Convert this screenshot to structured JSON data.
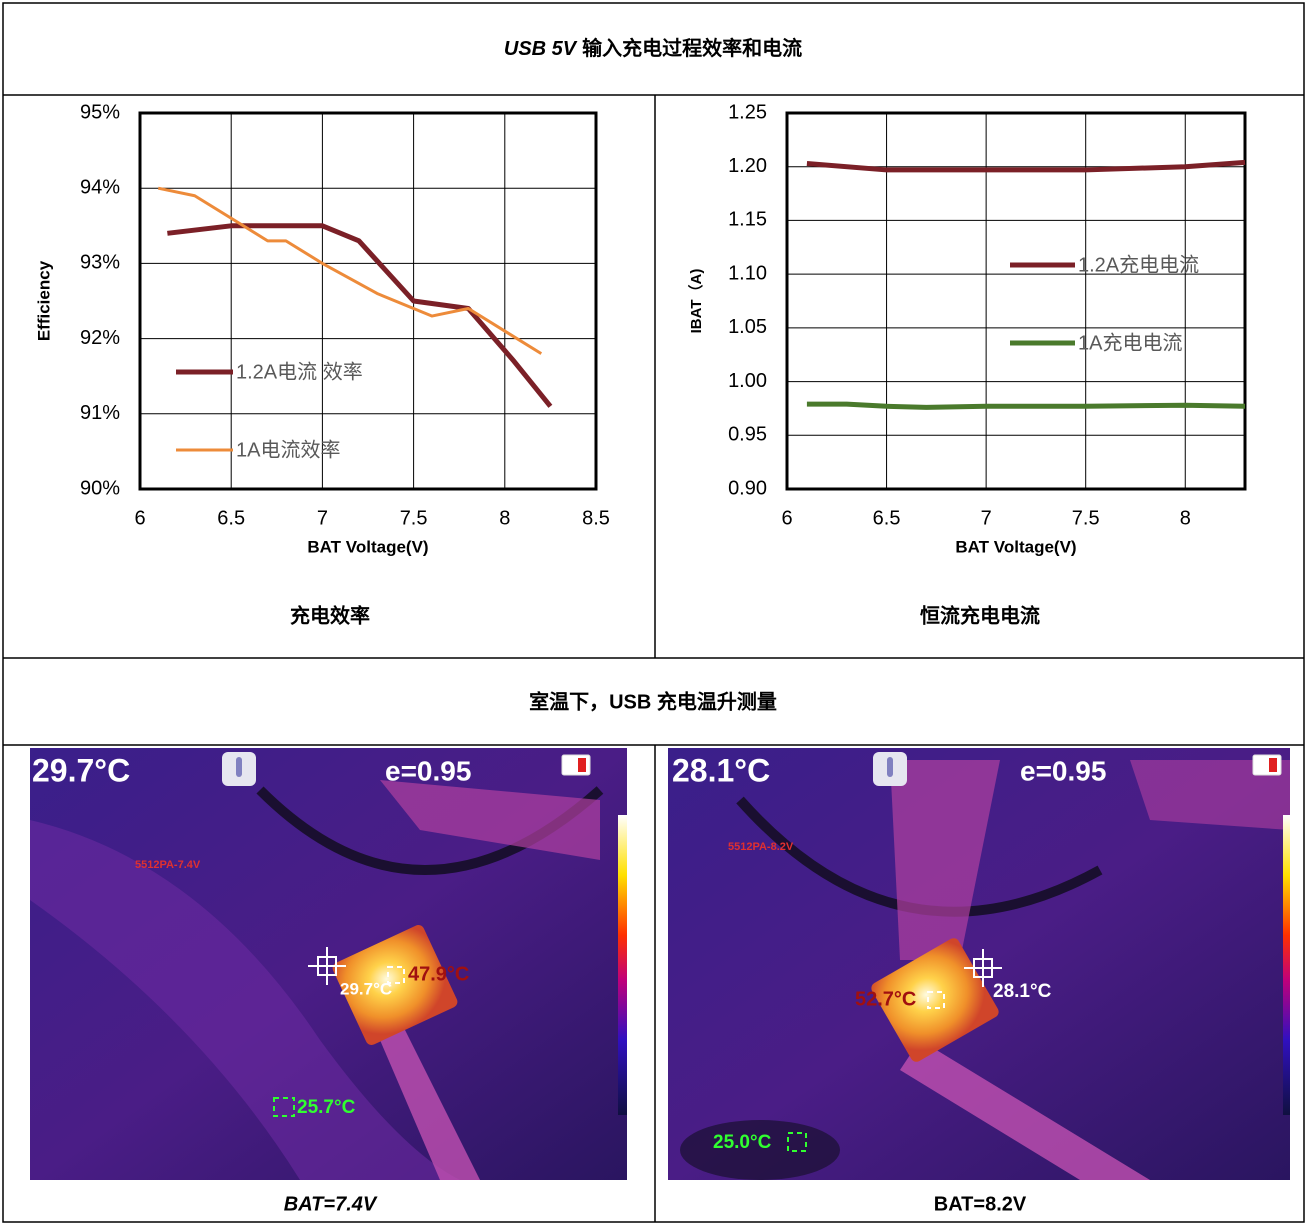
{
  "header": {
    "title_emphasis": "USB 5V",
    "title": "输入充电过程效率和电流"
  },
  "chart_data": [
    {
      "type": "line",
      "x_label": "BAT Voltage(V)",
      "y_label": "Efficiency",
      "caption": "充电效率",
      "xlim": [
        6,
        8.5
      ],
      "xticks": [
        6,
        6.5,
        7,
        7.5,
        8,
        8.5
      ],
      "ylim": [
        90,
        95
      ],
      "yticks": [
        {
          "value": 90,
          "label": "90%"
        },
        {
          "value": 91,
          "label": "91%"
        },
        {
          "value": 92,
          "label": "92%"
        },
        {
          "value": 93,
          "label": "93%"
        },
        {
          "value": 94,
          "label": "94%"
        },
        {
          "value": 95,
          "label": "95%"
        }
      ],
      "grid": true,
      "legend": "left",
      "series": [
        {
          "name": "1.2A电流 效率",
          "color": "#7b2027",
          "width": 5,
          "x": [
            6.15,
            6.5,
            7.0,
            7.2,
            7.5,
            7.8,
            8.05,
            8.25
          ],
          "values": [
            93.4,
            93.5,
            93.5,
            93.3,
            92.5,
            92.4,
            91.7,
            91.1
          ]
        },
        {
          "name": "1A电流效率",
          "color": "#ed8b3a",
          "width": 3,
          "x": [
            6.1,
            6.3,
            6.5,
            6.7,
            6.8,
            7.0,
            7.3,
            7.6,
            7.8,
            8.2
          ],
          "values": [
            94.0,
            93.9,
            93.6,
            93.3,
            93.3,
            93.0,
            92.6,
            92.3,
            92.4,
            91.8
          ]
        }
      ]
    },
    {
      "type": "line",
      "x_label": "BAT Voltage(V)",
      "y_label": "IBAT（A)",
      "caption": "恒流充电电流",
      "xlim": [
        6,
        8.3
      ],
      "xticks": [
        6,
        6.5,
        7,
        7.5,
        8
      ],
      "ylim": [
        0.9,
        1.25
      ],
      "yticks": [
        {
          "value": 0.9,
          "label": "0.90"
        },
        {
          "value": 0.95,
          "label": "0.95"
        },
        {
          "value": 1.0,
          "label": "1.00"
        },
        {
          "value": 1.05,
          "label": "1.05"
        },
        {
          "value": 1.1,
          "label": "1.10"
        },
        {
          "value": 1.15,
          "label": "1.15"
        },
        {
          "value": 1.2,
          "label": "1.20"
        },
        1.25
      ],
      "grid": true,
      "legend": "right",
      "series": [
        {
          "name": "1.2A充电电流",
          "color": "#7b2027",
          "width": 5,
          "x": [
            6.1,
            6.5,
            7.0,
            7.5,
            8.0,
            8.3
          ],
          "values": [
            1.203,
            1.197,
            1.197,
            1.197,
            1.2,
            1.204
          ]
        },
        {
          "name": "1A充电电流",
          "color": "#4a7a2c",
          "width": 5,
          "x": [
            6.1,
            6.3,
            6.5,
            6.7,
            7.0,
            7.5,
            8.0,
            8.3
          ],
          "values": [
            0.979,
            0.979,
            0.977,
            0.976,
            0.977,
            0.977,
            0.978,
            0.977
          ]
        }
      ]
    }
  ],
  "section_title": "室温下，USB 充电温升测量",
  "thermal_images": [
    {
      "reading": "29.7°C",
      "emissivity": "e=0.95",
      "label": "5512PA-7.4V",
      "hot_spot": "47.9°C",
      "center_spot": "29.7°C",
      "cold_spot": "25.7°C",
      "caption": "BAT=7.4V"
    },
    {
      "reading": "28.1°C",
      "emissivity": "e=0.95",
      "label": "5512PA-8.2V",
      "hot_spot": "52.7°C",
      "center_spot": "28.1°C",
      "cold_spot": "25.0°C",
      "caption": "BAT=8.2V"
    }
  ]
}
